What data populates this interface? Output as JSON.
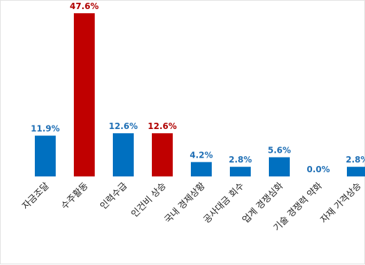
{
  "chart_data": {
    "type": "bar",
    "categories": [
      "자금조달",
      "수주활동",
      "인력수급",
      "인건비 상승",
      "국내 경제상황",
      "공사대금 회수",
      "업계 경쟁심화",
      "기술 경쟁력 약화",
      "자재 가격상승"
    ],
    "values": [
      11.9,
      47.6,
      12.6,
      12.6,
      4.2,
      2.8,
      5.6,
      0.0,
      2.8
    ],
    "value_labels": [
      "11.9%",
      "47.6%",
      "12.6%",
      "12.6%",
      "4.2%",
      "2.8%",
      "5.6%",
      "0.0%",
      "2.8%"
    ],
    "highlight": [
      false,
      true,
      false,
      true,
      false,
      false,
      false,
      false,
      false
    ],
    "ylim": [
      0,
      47.6
    ],
    "grid": false,
    "legend": "none",
    "title": "",
    "xlabel": "",
    "ylabel": ""
  },
  "colors": {
    "normal": "#0070c0",
    "highlight": "#c00000",
    "normal_label": "#1f6fb5",
    "highlight_label": "#b00000"
  }
}
